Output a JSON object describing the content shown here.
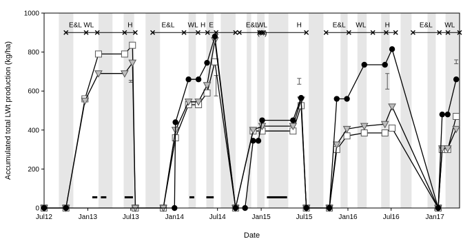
{
  "chart_data": {
    "type": "line",
    "xlabel": "Date",
    "ylabel": "Accumulated total LWt production (kg/ha)",
    "xlim": [
      "2012-07-01",
      "2017-04-15"
    ],
    "ylim": [
      0,
      1000
    ],
    "y_ticks": [
      0,
      200,
      400,
      600,
      800,
      1000
    ],
    "x_ticks": [
      {
        "date": "2012-07-01",
        "label": "Jul12"
      },
      {
        "date": "2013-01-01",
        "label": "Jan13"
      },
      {
        "date": "2013-07-01",
        "label": "Jul13"
      },
      {
        "date": "2014-01-01",
        "label": "Jan14"
      },
      {
        "date": "2014-07-01",
        "label": "Jul14"
      },
      {
        "date": "2015-01-01",
        "label": "Jan15"
      },
      {
        "date": "2015-07-01",
        "label": "Jul15"
      },
      {
        "date": "2016-01-01",
        "label": "Jan16"
      },
      {
        "date": "2016-07-01",
        "label": "Jul16"
      },
      {
        "date": "2017-01-01",
        "label": "Jan17"
      }
    ],
    "grid": false,
    "shaded_periods": [
      [
        "2012-09-01",
        "2012-11-01"
      ],
      [
        "2013-02-15",
        "2013-04-15"
      ],
      [
        "2013-06-01",
        "2013-07-15"
      ],
      [
        "2013-09-01",
        "2013-11-01"
      ],
      [
        "2014-03-01",
        "2014-04-01"
      ],
      [
        "2014-05-15",
        "2014-06-15"
      ],
      [
        "2014-07-15",
        "2014-09-15"
      ],
      [
        "2014-11-01",
        "2014-11-20"
      ],
      [
        "2014-12-15",
        "2015-01-15"
      ],
      [
        "2015-02-01",
        "2015-04-25"
      ],
      [
        "2015-07-20",
        "2015-09-20"
      ],
      [
        "2015-12-01",
        "2015-12-31"
      ],
      [
        "2016-02-10",
        "2016-03-20"
      ],
      [
        "2016-05-20",
        "2016-06-25"
      ],
      [
        "2016-08-10",
        "2016-09-25"
      ],
      [
        "2016-12-01",
        "2017-01-05"
      ],
      [
        "2017-02-15",
        "2017-04-15"
      ]
    ],
    "series": [
      {
        "marker": "circle-filled",
        "points": [
          {
            "x": "2012-07-01",
            "y": 0
          },
          {
            "x": "2012-10-01",
            "y": 0
          },
          {
            "x": "2014-01-01",
            "y": 0
          },
          {
            "x": "2014-01-05",
            "y": 440
          },
          {
            "x": "2014-03-01",
            "y": 660
          },
          {
            "x": "2014-04-12",
            "y": 660
          },
          {
            "x": "2014-05-18",
            "y": 745
          },
          {
            "x": "2014-06-20",
            "y": 880
          },
          {
            "x": "2014-09-15",
            "y": 0
          },
          {
            "x": "2014-10-25",
            "y": 0
          },
          {
            "x": "2014-11-28",
            "y": 345
          },
          {
            "x": "2014-12-20",
            "y": 345
          },
          {
            "x": "2015-01-05",
            "y": 450
          },
          {
            "x": "2015-05-15",
            "y": 450
          },
          {
            "x": "2015-06-18",
            "y": 565
          },
          {
            "x": "2015-07-10",
            "y": 0
          },
          {
            "x": "2015-10-15",
            "y": 0
          },
          {
            "x": "2015-11-15",
            "y": 560
          },
          {
            "x": "2015-12-28",
            "y": 560
          },
          {
            "x": "2016-03-10",
            "y": 735
          },
          {
            "x": "2016-06-05",
            "y": 735
          },
          {
            "x": "2016-07-05",
            "y": 815
          },
          {
            "x": "2017-01-15",
            "y": 0
          },
          {
            "x": "2017-02-01",
            "y": 480
          },
          {
            "x": "2017-02-24",
            "y": 480
          },
          {
            "x": "2017-04-01",
            "y": 660
          }
        ]
      },
      {
        "marker": "triangle-down",
        "points": [
          {
            "x": "2012-07-01",
            "y": 0
          },
          {
            "x": "2012-10-01",
            "y": 0
          },
          {
            "x": "2012-12-20",
            "y": 550
          },
          {
            "x": "2013-02-15",
            "y": 690
          },
          {
            "x": "2013-06-05",
            "y": 690
          },
          {
            "x": "2013-07-08",
            "y": 745
          },
          {
            "x": "2013-07-20",
            "y": 0
          },
          {
            "x": "2013-11-15",
            "y": 0
          },
          {
            "x": "2014-01-05",
            "y": 400
          },
          {
            "x": "2014-03-01",
            "y": 545
          },
          {
            "x": "2014-04-12",
            "y": 545
          },
          {
            "x": "2014-05-18",
            "y": 630
          },
          {
            "x": "2014-06-20",
            "y": 860
          },
          {
            "x": "2014-09-15",
            "y": 0
          },
          {
            "x": "2014-11-28",
            "y": 400
          },
          {
            "x": "2015-01-05",
            "y": 420
          },
          {
            "x": "2015-05-15",
            "y": 420
          },
          {
            "x": "2015-06-18",
            "y": 555
          },
          {
            "x": "2015-07-10",
            "y": 0
          },
          {
            "x": "2015-10-15",
            "y": 0
          },
          {
            "x": "2015-11-15",
            "y": 325
          },
          {
            "x": "2015-12-28",
            "y": 405
          },
          {
            "x": "2016-03-10",
            "y": 420
          },
          {
            "x": "2016-06-05",
            "y": 430
          },
          {
            "x": "2016-07-05",
            "y": 520
          },
          {
            "x": "2017-01-15",
            "y": 0
          },
          {
            "x": "2017-02-01",
            "y": 305
          },
          {
            "x": "2017-02-24",
            "y": 305
          },
          {
            "x": "2017-04-01",
            "y": 405
          }
        ]
      },
      {
        "marker": "square-open",
        "points": [
          {
            "x": "2012-07-01",
            "y": 0
          },
          {
            "x": "2012-10-01",
            "y": 0
          },
          {
            "x": "2012-12-20",
            "y": 560
          },
          {
            "x": "2013-02-15",
            "y": 790
          },
          {
            "x": "2013-06-05",
            "y": 790
          },
          {
            "x": "2013-07-08",
            "y": 835
          },
          {
            "x": "2013-07-20",
            "y": 0
          },
          {
            "x": "2013-11-15",
            "y": 0
          },
          {
            "x": "2014-01-05",
            "y": 360
          },
          {
            "x": "2014-03-01",
            "y": 530
          },
          {
            "x": "2014-04-12",
            "y": 530
          },
          {
            "x": "2014-05-18",
            "y": 590
          },
          {
            "x": "2014-06-20",
            "y": 750
          },
          {
            "x": "2014-09-15",
            "y": 0
          },
          {
            "x": "2014-11-28",
            "y": 395
          },
          {
            "x": "2015-01-05",
            "y": 395
          },
          {
            "x": "2015-05-15",
            "y": 395
          },
          {
            "x": "2015-06-18",
            "y": 525
          },
          {
            "x": "2015-07-10",
            "y": 0
          },
          {
            "x": "2015-10-15",
            "y": 0
          },
          {
            "x": "2015-11-15",
            "y": 300
          },
          {
            "x": "2015-12-28",
            "y": 370
          },
          {
            "x": "2016-03-10",
            "y": 385
          },
          {
            "x": "2016-06-05",
            "y": 385
          },
          {
            "x": "2016-07-05",
            "y": 410
          },
          {
            "x": "2017-01-15",
            "y": 0
          },
          {
            "x": "2017-02-01",
            "y": 300
          },
          {
            "x": "2017-02-24",
            "y": 300
          },
          {
            "x": "2017-04-01",
            "y": 470
          }
        ]
      }
    ],
    "error_bars": [
      {
        "x": "2013-07-01",
        "y_low": 645,
        "y_high": 655
      },
      {
        "x": "2014-06-25",
        "y_low": 575,
        "y_high": 680
      },
      {
        "x": "2015-06-10",
        "y_low": 635,
        "y_high": 665
      },
      {
        "x": "2016-06-15",
        "y_low": 610,
        "y_high": 690
      },
      {
        "x": "2017-04-01",
        "y_low": 740,
        "y_high": 760
      }
    ],
    "black_bars": [
      {
        "start": "2013-01-20",
        "end": "2013-02-10",
        "y": 55
      },
      {
        "start": "2013-02-25",
        "end": "2013-03-20",
        "y": 55
      },
      {
        "start": "2013-06-05",
        "end": "2013-07-10",
        "y": 55
      },
      {
        "start": "2014-03-05",
        "end": "2014-03-25",
        "y": 55
      },
      {
        "start": "2014-05-15",
        "end": "2014-06-15",
        "y": 55
      },
      {
        "start": "2015-01-25",
        "end": "2015-04-20",
        "y": 55
      }
    ],
    "phase_markers_y": 900,
    "phase_segments": [
      {
        "start": "2012-10-01",
        "end": "2013-07-20"
      },
      {
        "start": "2013-10-01",
        "end": "2014-09-15"
      },
      {
        "start": "2014-10-01",
        "end": "2015-07-10"
      },
      {
        "start": "2015-10-01",
        "end": "2016-07-20"
      },
      {
        "start": "2016-10-01",
        "end": "2017-04-15"
      }
    ],
    "phase_ticks": [
      "2012-10-01",
      "2012-12-25",
      "2013-02-10",
      "2013-06-05",
      "2013-07-20",
      "2013-10-01",
      "2014-02-10",
      "2014-04-10",
      "2014-05-20",
      "2014-06-25",
      "2014-09-15",
      "2014-10-01",
      "2014-12-25",
      "2015-01-01",
      "2015-01-10",
      "2015-07-10",
      "2015-10-01",
      "2016-01-05",
      "2016-04-15",
      "2016-06-10",
      "2016-07-20",
      "2016-10-01",
      "2017-01-20",
      "2017-02-25",
      "2017-04-15"
    ],
    "phase_labels": [
      {
        "x": "2012-11-10",
        "text": "E&L"
      },
      {
        "x": "2013-01-05",
        "text": "WL"
      },
      {
        "x": "2013-06-28",
        "text": "H"
      },
      {
        "x": "2013-12-05",
        "text": "E&L"
      },
      {
        "x": "2014-03-20",
        "text": "WL"
      },
      {
        "x": "2014-05-01",
        "text": "H"
      },
      {
        "x": "2014-06-05",
        "text": "E"
      },
      {
        "x": "2014-11-25",
        "text": "E&L"
      },
      {
        "x": "2015-01-05",
        "text": "WL"
      },
      {
        "x": "2015-01-05",
        "text": "(H)",
        "dy": 12
      },
      {
        "x": "2015-06-10",
        "text": "H"
      },
      {
        "x": "2015-11-25",
        "text": "E&L"
      },
      {
        "x": "2016-02-25",
        "text": "WL"
      },
      {
        "x": "2016-06-15",
        "text": "H"
      },
      {
        "x": "2016-11-25",
        "text": "E&L"
      },
      {
        "x": "2017-03-05",
        "text": "WL"
      }
    ]
  }
}
